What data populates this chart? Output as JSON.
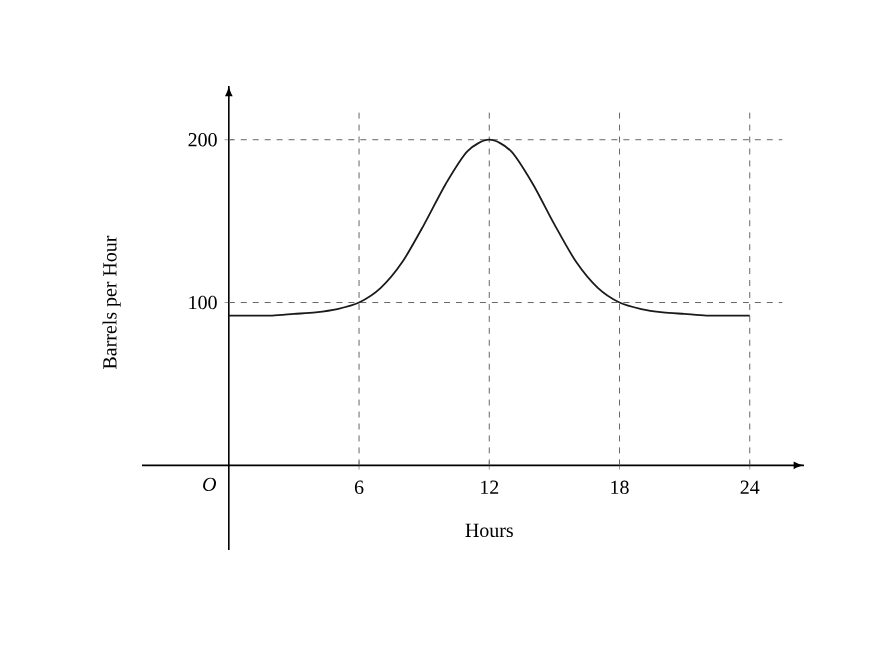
{
  "chart_data": {
    "type": "line",
    "xlabel": "Hours",
    "ylabel": "Barrels per Hour",
    "x": [
      0,
      1,
      2,
      3,
      4,
      5,
      6,
      7,
      8,
      9,
      10,
      11,
      12,
      13,
      14,
      15,
      16,
      17,
      18,
      19,
      20,
      21,
      22,
      23,
      24
    ],
    "series": [
      {
        "color": "#1a1a1a",
        "values": [
          92,
          92,
          92,
          93,
          94,
          96,
          100,
          109,
          125,
          148,
          173,
          193,
          200,
          193,
          173,
          148,
          125,
          109,
          100,
          96,
          94,
          93,
          92,
          92,
          92
        ]
      }
    ],
    "xlim": [
      -4,
      26.5
    ],
    "ylim": [
      -52,
      233
    ],
    "xticks": [
      6,
      12,
      18,
      24
    ],
    "annotations": [
      "O"
    ],
    "yticks": [
      100,
      200
    ],
    "ref_lines": [
      {
        "axis": "x",
        "value": 6,
        "line_style": "dashed"
      },
      {
        "axis": "x",
        "value": 12,
        "line_style": "dashed"
      },
      {
        "axis": "x",
        "value": 18,
        "line_style": "dashed"
      },
      {
        "axis": "x",
        "value": 24,
        "line_style": "dashed"
      },
      {
        "axis": "y",
        "value": 100,
        "line_style": "dashed"
      },
      {
        "axis": "y",
        "value": 200,
        "line_style": "dashed"
      }
    ],
    "marker": "none",
    "line_style": "solid"
  }
}
